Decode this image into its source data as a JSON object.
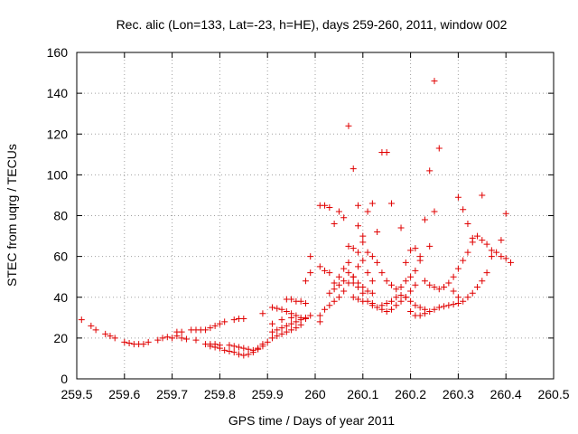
{
  "chart_data": {
    "type": "scatter",
    "title": "Rec. alic (Lon=133, Lat=-23, h=HE), days 259-260, 2011, window 002",
    "xlabel": "GPS time / Days of year 2011",
    "ylabel": "STEC from uqrg / TECUs",
    "xlim": [
      259.5,
      260.5
    ],
    "ylim": [
      0,
      160
    ],
    "xticks": [
      "259.5",
      "259.6",
      "259.7",
      "259.8",
      "259.9",
      "260",
      "260.1",
      "260.2",
      "260.3",
      "260.4",
      "260.5"
    ],
    "yticks": [
      "0",
      "20",
      "40",
      "60",
      "80",
      "100",
      "120",
      "140",
      "160"
    ],
    "grid": true,
    "marker": "+",
    "color": "#e00000",
    "points": [
      [
        259.51,
        29
      ],
      [
        259.53,
        26
      ],
      [
        259.54,
        24
      ],
      [
        259.56,
        22
      ],
      [
        259.57,
        21
      ],
      [
        259.58,
        20
      ],
      [
        259.6,
        18
      ],
      [
        259.61,
        17.5
      ],
      [
        259.62,
        17
      ],
      [
        259.63,
        17
      ],
      [
        259.64,
        17
      ],
      [
        259.65,
        18
      ],
      [
        259.67,
        19
      ],
      [
        259.68,
        20
      ],
      [
        259.69,
        20.5
      ],
      [
        259.7,
        20
      ],
      [
        259.71,
        23
      ],
      [
        259.72,
        23
      ],
      [
        259.74,
        24
      ],
      [
        259.75,
        24
      ],
      [
        259.76,
        24
      ],
      [
        259.77,
        24
      ],
      [
        259.78,
        25
      ],
      [
        259.79,
        26
      ],
      [
        259.8,
        27
      ],
      [
        259.81,
        28
      ],
      [
        259.83,
        29
      ],
      [
        259.84,
        29.5
      ],
      [
        259.85,
        29.5
      ],
      [
        259.71,
        21
      ],
      [
        259.72,
        20
      ],
      [
        259.73,
        19.5
      ],
      [
        259.75,
        19
      ],
      [
        259.77,
        17
      ],
      [
        259.78,
        16
      ],
      [
        259.79,
        15.5
      ],
      [
        259.8,
        15
      ],
      [
        259.81,
        14
      ],
      [
        259.82,
        13.5
      ],
      [
        259.83,
        13
      ],
      [
        259.84,
        12
      ],
      [
        259.85,
        11.5
      ],
      [
        259.86,
        12
      ],
      [
        259.87,
        13
      ],
      [
        259.88,
        15
      ],
      [
        259.89,
        17
      ],
      [
        259.78,
        17
      ],
      [
        259.79,
        17
      ],
      [
        259.8,
        16.5
      ],
      [
        259.82,
        16.5
      ],
      [
        259.83,
        16
      ],
      [
        259.84,
        15.5
      ],
      [
        259.85,
        15
      ],
      [
        259.86,
        14.5
      ],
      [
        259.87,
        14
      ],
      [
        259.88,
        14.5
      ],
      [
        259.89,
        16
      ],
      [
        259.9,
        18
      ],
      [
        259.91,
        20
      ],
      [
        259.92,
        21
      ],
      [
        259.93,
        22
      ],
      [
        259.94,
        23
      ],
      [
        259.95,
        24
      ],
      [
        259.96,
        25
      ],
      [
        259.97,
        26.5
      ],
      [
        259.89,
        32
      ],
      [
        259.91,
        35
      ],
      [
        259.92,
        34.5
      ],
      [
        259.93,
        34
      ],
      [
        259.94,
        33
      ],
      [
        259.95,
        32
      ],
      [
        259.96,
        31
      ],
      [
        259.97,
        30
      ],
      [
        259.98,
        30
      ],
      [
        259.99,
        31
      ],
      [
        259.91,
        23
      ],
      [
        259.92,
        24
      ],
      [
        259.93,
        25
      ],
      [
        259.94,
        26
      ],
      [
        259.95,
        27
      ],
      [
        259.96,
        28
      ],
      [
        259.97,
        29
      ],
      [
        259.98,
        29.5
      ],
      [
        259.91,
        27
      ],
      [
        259.93,
        29
      ],
      [
        259.95,
        30
      ],
      [
        259.94,
        39
      ],
      [
        259.95,
        39
      ],
      [
        259.96,
        38
      ],
      [
        259.97,
        38
      ],
      [
        259.98,
        37
      ],
      [
        259.98,
        48
      ],
      [
        259.99,
        52
      ],
      [
        259.99,
        60
      ],
      [
        260.01,
        28
      ],
      [
        260.01,
        31
      ],
      [
        260.02,
        34
      ],
      [
        260.03,
        36
      ],
      [
        260.04,
        38
      ],
      [
        260.05,
        40
      ],
      [
        260.06,
        43
      ],
      [
        260.07,
        47
      ],
      [
        260.08,
        50
      ],
      [
        260.09,
        55
      ],
      [
        260.01,
        85
      ],
      [
        260.02,
        85
      ],
      [
        260.03,
        84
      ],
      [
        260.04,
        76
      ],
      [
        260.05,
        82
      ],
      [
        260.06,
        79
      ],
      [
        260.07,
        65
      ],
      [
        260.08,
        64
      ],
      [
        260.09,
        62
      ],
      [
        260.1,
        58
      ],
      [
        260.11,
        52
      ],
      [
        260.12,
        48
      ],
      [
        260.01,
        55
      ],
      [
        260.02,
        53
      ],
      [
        260.03,
        52
      ],
      [
        260.04,
        47
      ],
      [
        260.05,
        50
      ],
      [
        260.06,
        54
      ],
      [
        260.07,
        57
      ],
      [
        260.08,
        50
      ],
      [
        260.09,
        47
      ],
      [
        260.1,
        45
      ],
      [
        260.11,
        43
      ],
      [
        260.12,
        42
      ],
      [
        260.03,
        42
      ],
      [
        260.04,
        44
      ],
      [
        260.05,
        46
      ],
      [
        260.06,
        48
      ],
      [
        260.07,
        52
      ],
      [
        260.08,
        47
      ],
      [
        260.09,
        45
      ],
      [
        260.1,
        42
      ],
      [
        260.11,
        38
      ],
      [
        260.12,
        36
      ],
      [
        260.13,
        35
      ],
      [
        260.14,
        34
      ],
      [
        260.15,
        33
      ],
      [
        260.16,
        34
      ],
      [
        260.17,
        36
      ],
      [
        260.18,
        38
      ],
      [
        260.19,
        40
      ],
      [
        260.2,
        43
      ],
      [
        260.21,
        46
      ],
      [
        260.07,
        124
      ],
      [
        260.08,
        103
      ],
      [
        260.09,
        85
      ],
      [
        260.1,
        70
      ],
      [
        260.11,
        82
      ],
      [
        260.12,
        86
      ],
      [
        260.13,
        72
      ],
      [
        260.14,
        111
      ],
      [
        260.15,
        111
      ],
      [
        260.16,
        86
      ],
      [
        260.18,
        74
      ],
      [
        260.09,
        75
      ],
      [
        260.1,
        67
      ],
      [
        260.11,
        62
      ],
      [
        260.12,
        60
      ],
      [
        260.13,
        57
      ],
      [
        260.14,
        52
      ],
      [
        260.15,
        48
      ],
      [
        260.16,
        46
      ],
      [
        260.17,
        44
      ],
      [
        260.18,
        45
      ],
      [
        260.19,
        48
      ],
      [
        260.2,
        50
      ],
      [
        260.21,
        53
      ],
      [
        260.22,
        58
      ],
      [
        260.08,
        40
      ],
      [
        260.09,
        39
      ],
      [
        260.1,
        38
      ],
      [
        260.12,
        37
      ],
      [
        260.14,
        36
      ],
      [
        260.15,
        37
      ],
      [
        260.16,
        38
      ],
      [
        260.17,
        40
      ],
      [
        260.18,
        41
      ],
      [
        260.19,
        40
      ],
      [
        260.2,
        38
      ],
      [
        260.21,
        36
      ],
      [
        260.22,
        35
      ],
      [
        260.23,
        34
      ],
      [
        260.19,
        57
      ],
      [
        260.2,
        63
      ],
      [
        260.21,
        64
      ],
      [
        260.22,
        60
      ],
      [
        260.23,
        78
      ],
      [
        260.24,
        102
      ],
      [
        260.25,
        82
      ],
      [
        260.25,
        146
      ],
      [
        260.26,
        113
      ],
      [
        260.24,
        65
      ],
      [
        260.2,
        33
      ],
      [
        260.21,
        31
      ],
      [
        260.22,
        31
      ],
      [
        260.23,
        32
      ],
      [
        260.24,
        33
      ],
      [
        260.25,
        34
      ],
      [
        260.26,
        35
      ],
      [
        260.27,
        35.5
      ],
      [
        260.28,
        36
      ],
      [
        260.29,
        36.5
      ],
      [
        260.3,
        37
      ],
      [
        260.31,
        38
      ],
      [
        260.32,
        40
      ],
      [
        260.33,
        42
      ],
      [
        260.34,
        45
      ],
      [
        260.35,
        48
      ],
      [
        260.36,
        52
      ],
      [
        260.23,
        48
      ],
      [
        260.24,
        46
      ],
      [
        260.25,
        45
      ],
      [
        260.26,
        44
      ],
      [
        260.27,
        45
      ],
      [
        260.28,
        47
      ],
      [
        260.29,
        50
      ],
      [
        260.3,
        54
      ],
      [
        260.31,
        58
      ],
      [
        260.32,
        62
      ],
      [
        260.33,
        67
      ],
      [
        260.34,
        70
      ],
      [
        260.35,
        68
      ],
      [
        260.36,
        66
      ],
      [
        260.37,
        63
      ],
      [
        260.38,
        62
      ],
      [
        260.39,
        60
      ],
      [
        260.4,
        59
      ],
      [
        260.41,
        57
      ],
      [
        260.3,
        89
      ],
      [
        260.31,
        83
      ],
      [
        260.32,
        76
      ],
      [
        260.33,
        69
      ],
      [
        260.35,
        90
      ],
      [
        260.37,
        60
      ],
      [
        260.39,
        68
      ],
      [
        260.4,
        81
      ],
      [
        260.3,
        40
      ],
      [
        260.27,
        45
      ],
      [
        260.29,
        43
      ]
    ]
  }
}
